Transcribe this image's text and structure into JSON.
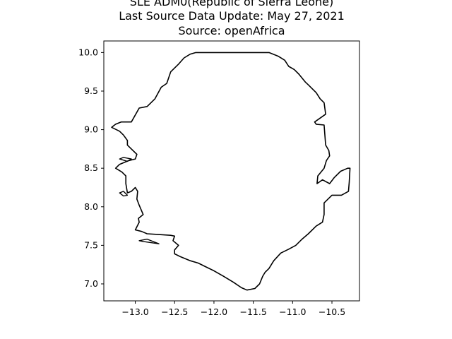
{
  "map": {
    "title_lines": [
      "SLE ADM0(Republic of Sierra Leone)",
      "Last Source Data Update: May 27, 2021",
      "Source: openAfrica"
    ],
    "xlim": [
      -13.4,
      -10.15
    ],
    "ylim": [
      6.78,
      10.15
    ],
    "x_ticks": [
      {
        "value": -13.0,
        "label": "−13.0"
      },
      {
        "value": -12.5,
        "label": "−12.5"
      },
      {
        "value": -12.0,
        "label": "−12.0"
      },
      {
        "value": -11.5,
        "label": "−11.5"
      },
      {
        "value": -11.0,
        "label": "−11.0"
      },
      {
        "value": -10.5,
        "label": "−10.5"
      }
    ],
    "y_ticks": [
      {
        "value": 7.0,
        "label": "7.0"
      },
      {
        "value": 7.5,
        "label": "7.5"
      },
      {
        "value": 8.0,
        "label": "8.0"
      },
      {
        "value": 8.5,
        "label": "8.5"
      },
      {
        "value": 9.0,
        "label": "9.0"
      },
      {
        "value": 9.5,
        "label": "9.5"
      },
      {
        "value": 10.0,
        "label": "10.0"
      }
    ],
    "outline_color": "#000000",
    "boundary_lonlat": [
      [
        -12.23,
        10.0
      ],
      [
        -11.9,
        10.0
      ],
      [
        -11.8,
        10.0
      ],
      [
        -11.55,
        10.0
      ],
      [
        -11.3,
        10.0
      ],
      [
        -11.18,
        9.95
      ],
      [
        -11.1,
        9.9
      ],
      [
        -11.05,
        9.82
      ],
      [
        -10.98,
        9.78
      ],
      [
        -10.92,
        9.72
      ],
      [
        -10.84,
        9.62
      ],
      [
        -10.8,
        9.58
      ],
      [
        -10.7,
        9.48
      ],
      [
        -10.65,
        9.4
      ],
      [
        -10.6,
        9.35
      ],
      [
        -10.58,
        9.2
      ],
      [
        -10.72,
        9.1
      ],
      [
        -10.7,
        9.07
      ],
      [
        -10.6,
        9.06
      ],
      [
        -10.58,
        8.8
      ],
      [
        -10.54,
        8.73
      ],
      [
        -10.53,
        8.66
      ],
      [
        -10.57,
        8.6
      ],
      [
        -10.6,
        8.5
      ],
      [
        -10.68,
        8.4
      ],
      [
        -10.69,
        8.3
      ],
      [
        -10.62,
        8.35
      ],
      [
        -10.53,
        8.3
      ],
      [
        -10.47,
        8.38
      ],
      [
        -10.39,
        8.46
      ],
      [
        -10.3,
        8.5
      ],
      [
        -10.27,
        8.5
      ],
      [
        -10.28,
        8.32
      ],
      [
        -10.29,
        8.2
      ],
      [
        -10.38,
        8.15
      ],
      [
        -10.5,
        8.15
      ],
      [
        -10.6,
        8.05
      ],
      [
        -10.6,
        7.9
      ],
      [
        -10.62,
        7.8
      ],
      [
        -10.7,
        7.75
      ],
      [
        -10.8,
        7.65
      ],
      [
        -10.88,
        7.58
      ],
      [
        -10.96,
        7.5
      ],
      [
        -11.05,
        7.45
      ],
      [
        -11.15,
        7.4
      ],
      [
        -11.24,
        7.3
      ],
      [
        -11.3,
        7.2
      ],
      [
        -11.35,
        7.15
      ],
      [
        -11.38,
        7.1
      ],
      [
        -11.42,
        7.0
      ],
      [
        -11.48,
        6.94
      ],
      [
        -11.58,
        6.92
      ],
      [
        -11.65,
        6.95
      ],
      [
        -11.75,
        7.02
      ],
      [
        -11.88,
        7.1
      ],
      [
        -12.0,
        7.17
      ],
      [
        -12.1,
        7.22
      ],
      [
        -12.2,
        7.27
      ],
      [
        -12.3,
        7.3
      ],
      [
        -12.42,
        7.35
      ],
      [
        -12.5,
        7.39
      ],
      [
        -12.5,
        7.44
      ],
      [
        -12.45,
        7.5
      ],
      [
        -12.52,
        7.56
      ],
      [
        -12.5,
        7.62
      ],
      [
        -12.55,
        7.63
      ],
      [
        -12.7,
        7.64
      ],
      [
        -12.85,
        7.65
      ],
      [
        -12.92,
        7.68
      ],
      [
        -13.0,
        7.7
      ],
      [
        -12.95,
        7.8
      ],
      [
        -12.96,
        7.85
      ],
      [
        -12.9,
        7.9
      ],
      [
        -12.95,
        8.02
      ],
      [
        -12.98,
        8.1
      ],
      [
        -12.97,
        8.2
      ],
      [
        -13.0,
        8.25
      ],
      [
        -13.05,
        8.2
      ],
      [
        -13.1,
        8.18
      ],
      [
        -13.12,
        8.3
      ],
      [
        -13.12,
        8.4
      ],
      [
        -13.17,
        8.45
      ],
      [
        -13.25,
        8.5
      ],
      [
        -13.2,
        8.55
      ],
      [
        -13.08,
        8.6
      ],
      [
        -13.0,
        8.62
      ],
      [
        -12.98,
        8.68
      ],
      [
        -13.05,
        8.75
      ],
      [
        -13.1,
        8.8
      ],
      [
        -13.1,
        8.86
      ],
      [
        -13.15,
        8.93
      ],
      [
        -13.2,
        8.98
      ],
      [
        -13.3,
        9.03
      ],
      [
        -13.25,
        9.07
      ],
      [
        -13.18,
        9.1
      ],
      [
        -13.05,
        9.1
      ],
      [
        -12.95,
        9.28
      ],
      [
        -12.85,
        9.3
      ],
      [
        -12.75,
        9.4
      ],
      [
        -12.67,
        9.55
      ],
      [
        -12.6,
        9.6
      ],
      [
        -12.55,
        9.75
      ],
      [
        -12.45,
        9.85
      ],
      [
        -12.38,
        9.93
      ],
      [
        -12.3,
        9.98
      ],
      [
        -12.23,
        10.0
      ]
    ],
    "islands_lonlat": [
      [
        [
          -13.2,
          8.18
        ],
        [
          -13.15,
          8.14
        ],
        [
          -13.1,
          8.15
        ],
        [
          -13.15,
          8.2
        ],
        [
          -13.2,
          8.18
        ]
      ],
      [
        [
          -12.95,
          7.56
        ],
        [
          -12.85,
          7.58
        ],
        [
          -12.7,
          7.52
        ],
        [
          -12.9,
          7.55
        ],
        [
          -12.95,
          7.56
        ]
      ],
      [
        [
          -13.2,
          8.62
        ],
        [
          -13.1,
          8.59
        ],
        [
          -13.05,
          8.62
        ],
        [
          -13.15,
          8.64
        ],
        [
          -13.2,
          8.62
        ]
      ]
    ]
  }
}
